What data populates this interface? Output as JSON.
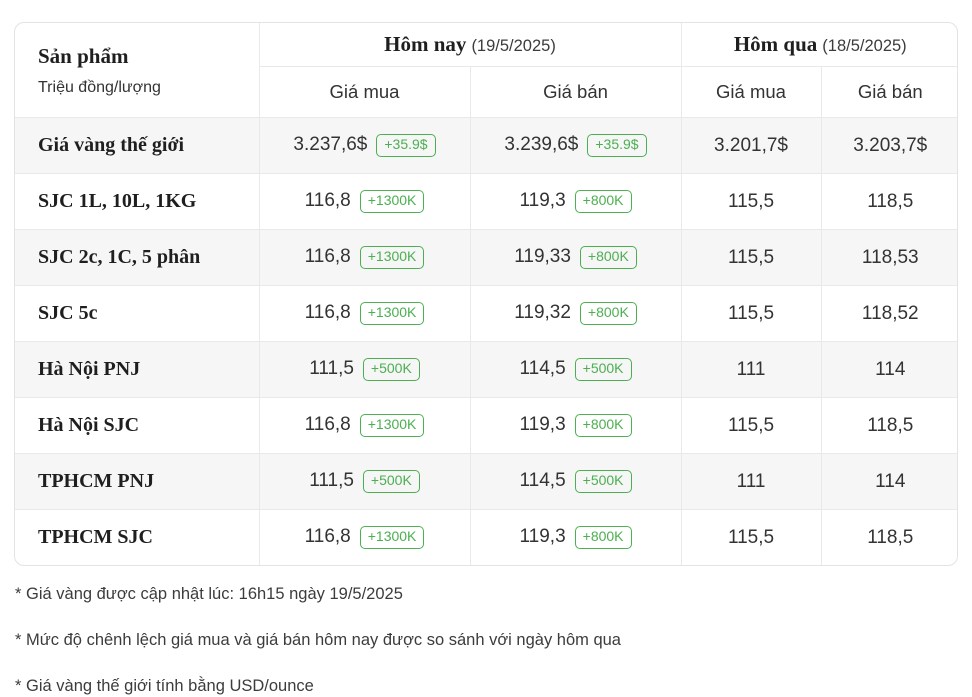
{
  "table": {
    "corner": {
      "title": "Sản phẩm",
      "unit": "Triệu đồng/lượng"
    },
    "today": {
      "label": "Hôm nay",
      "date": "(19/5/2025)"
    },
    "yesterday": {
      "label": "Hôm qua",
      "date": "(18/5/2025)"
    },
    "col_buy": "Giá mua",
    "col_sell": "Giá bán",
    "rows": [
      {
        "product": "Giá vàng thế giới",
        "today_buy": "3.237,6$",
        "today_buy_change": "+35.9$",
        "today_sell": "3.239,6$",
        "today_sell_change": "+35.9$",
        "yesterday_buy": "3.201,7$",
        "yesterday_sell": "3.203,7$"
      },
      {
        "product": "SJC 1L, 10L, 1KG",
        "today_buy": "116,8",
        "today_buy_change": "+1300K",
        "today_sell": "119,3",
        "today_sell_change": "+800K",
        "yesterday_buy": "115,5",
        "yesterday_sell": "118,5"
      },
      {
        "product": "SJC 2c, 1C, 5 phân",
        "today_buy": "116,8",
        "today_buy_change": "+1300K",
        "today_sell": "119,33",
        "today_sell_change": "+800K",
        "yesterday_buy": "115,5",
        "yesterday_sell": "118,53"
      },
      {
        "product": "SJC 5c",
        "today_buy": "116,8",
        "today_buy_change": "+1300K",
        "today_sell": "119,32",
        "today_sell_change": "+800K",
        "yesterday_buy": "115,5",
        "yesterday_sell": "118,52"
      },
      {
        "product": "Hà Nội PNJ",
        "today_buy": "111,5",
        "today_buy_change": "+500K",
        "today_sell": "114,5",
        "today_sell_change": "+500K",
        "yesterday_buy": "111",
        "yesterday_sell": "114"
      },
      {
        "product": "Hà Nội SJC",
        "today_buy": "116,8",
        "today_buy_change": "+1300K",
        "today_sell": "119,3",
        "today_sell_change": "+800K",
        "yesterday_buy": "115,5",
        "yesterday_sell": "118,5"
      },
      {
        "product": "TPHCM PNJ",
        "today_buy": "111,5",
        "today_buy_change": "+500K",
        "today_sell": "114,5",
        "today_sell_change": "+500K",
        "yesterday_buy": "111",
        "yesterday_sell": "114"
      },
      {
        "product": "TPHCM SJC",
        "today_buy": "116,8",
        "today_buy_change": "+1300K",
        "today_sell": "119,3",
        "today_sell_change": "+800K",
        "yesterday_buy": "115,5",
        "yesterday_sell": "118,5"
      }
    ]
  },
  "notes": [
    "* Giá vàng được cập nhật lúc: 16h15 ngày 19/5/2025",
    "* Mức độ chênh lệch giá mua và giá bán hôm nay được so sánh với ngày hôm qua",
    "* Giá vàng thế giới tính bằng USD/ounce"
  ],
  "colors": {
    "positive_change": "#4caf50",
    "row_alt_background": "#f6f6f7",
    "table_border": "#e3e3e3"
  }
}
